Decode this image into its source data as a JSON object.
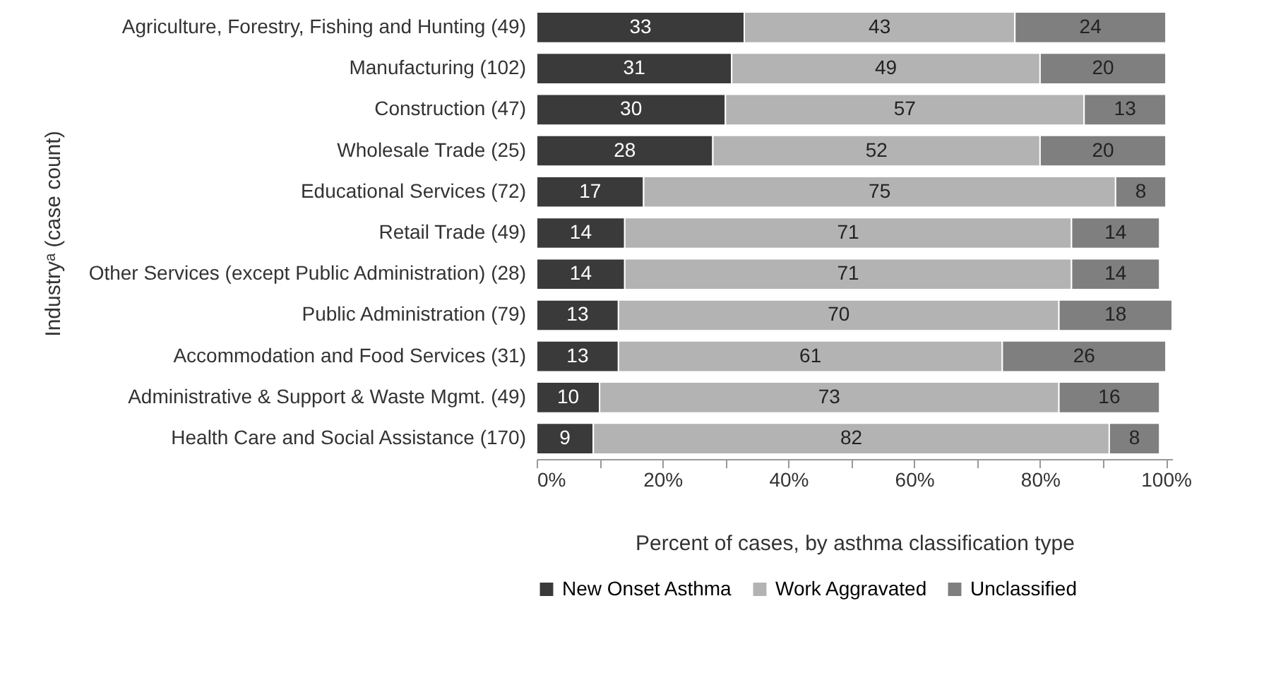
{
  "chart_data": {
    "type": "bar",
    "orientation": "horizontal",
    "stacked": true,
    "data_labels": true,
    "legend": "bottom",
    "grid": false,
    "xlabel": "Percent of cases, by asthma classification type",
    "ylabel": "Industryᵃ (case count)",
    "categories": [
      "Agriculture, Forestry, Fishing and Hunting (49)",
      "Manufacturing (102)",
      "Construction (47)",
      "Wholesale Trade (25)",
      "Educational Services (72)",
      "Retail Trade (49)",
      "Other Services (except Public Administration) (28)",
      "Public Administration (79)",
      "Accommodation and Food Services (31)",
      "Administrative & Support & Waste Mgmt. (49)",
      "Health Care and Social Assistance (170)"
    ],
    "series": [
      {
        "name": "New Onset Asthma",
        "color": "#3a3a3a",
        "values": [
          33,
          31,
          30,
          28,
          17,
          14,
          14,
          13,
          13,
          10,
          9
        ]
      },
      {
        "name": "Work Aggravated",
        "color": "#b3b3b3",
        "values": [
          43,
          49,
          57,
          52,
          75,
          71,
          71,
          70,
          61,
          73,
          82
        ]
      },
      {
        "name": "Unclassified",
        "color": "#7f7f7f",
        "values": [
          24,
          20,
          13,
          20,
          8,
          14,
          14,
          18,
          26,
          16,
          8
        ]
      }
    ],
    "xlim": [
      0,
      101
    ],
    "xticks": [
      {
        "value": 0,
        "label": "0%"
      },
      {
        "value": 10,
        "label": null
      },
      {
        "value": 20,
        "label": "20%"
      },
      {
        "value": 30,
        "label": null
      },
      {
        "value": 40,
        "label": "40%"
      },
      {
        "value": 50,
        "label": null
      },
      {
        "value": 60,
        "label": "60%"
      },
      {
        "value": 70,
        "label": null
      },
      {
        "value": 80,
        "label": "80%"
      },
      {
        "value": 90,
        "label": null
      },
      {
        "value": 100,
        "label": "100%"
      }
    ]
  }
}
